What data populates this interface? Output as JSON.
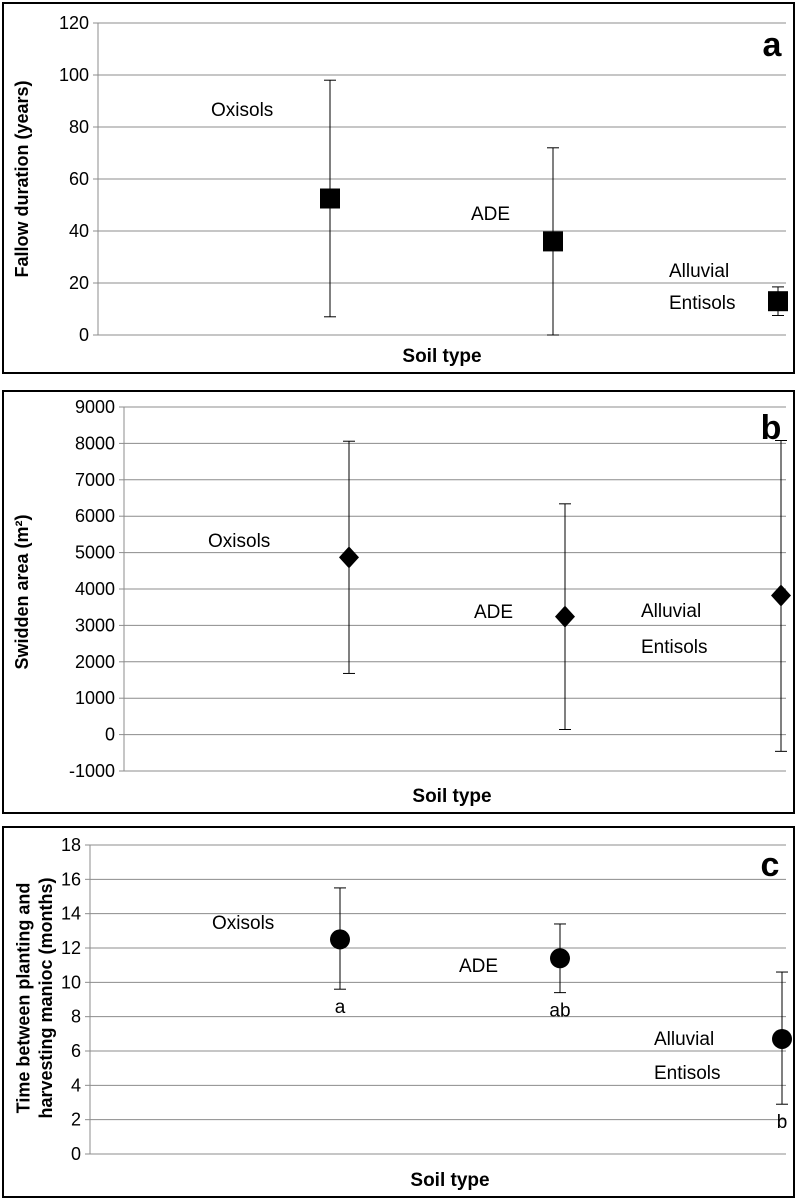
{
  "chart_data": [
    {
      "type": "scatter",
      "panel_letter": "a",
      "marker": "square",
      "ylabel": "Fallow duration (years)",
      "xlabel": "Soil type",
      "ylim": [
        0,
        120
      ],
      "yticks": [
        0,
        20,
        40,
        60,
        80,
        100,
        120
      ],
      "grid": true,
      "points": [
        {
          "label": "Oxisols",
          "y": 52.5,
          "err_low": 7,
          "err_high": 98,
          "letter": ""
        },
        {
          "label": "ADE",
          "y": 36,
          "err_low": 0,
          "err_high": 72,
          "letter": ""
        },
        {
          "label": "Alluvial Entisols",
          "y": 13,
          "err_low": 7.5,
          "err_high": 18.5,
          "letter": ""
        }
      ]
    },
    {
      "type": "scatter",
      "panel_letter": "b",
      "marker": "diamond",
      "ylabel": "Swidden area (m²)",
      "xlabel": "Soil type",
      "ylim": [
        -1000,
        9000
      ],
      "yticks": [
        -1000,
        0,
        1000,
        2000,
        3000,
        4000,
        5000,
        6000,
        7000,
        8000,
        9000
      ],
      "grid": true,
      "points": [
        {
          "label": "Oxisols",
          "y": 4870,
          "err_low": 1680,
          "err_high": 8060,
          "letter": ""
        },
        {
          "label": "ADE",
          "y": 3240,
          "err_low": 140,
          "err_high": 6340,
          "letter": ""
        },
        {
          "label": "Alluvial Entisols",
          "y": 3820,
          "err_low": -460,
          "err_high": 8080,
          "letter": ""
        }
      ]
    },
    {
      "type": "scatter",
      "panel_letter": "c",
      "marker": "circle",
      "ylabel": "Time between planting and harvesting manioc (months)",
      "xlabel": "Soil type",
      "ylim": [
        0,
        18
      ],
      "yticks": [
        0,
        2,
        4,
        6,
        8,
        10,
        12,
        14,
        16,
        18
      ],
      "grid": true,
      "points": [
        {
          "label": "Oxisols",
          "y": 12.5,
          "err_low": 9.6,
          "err_high": 15.5,
          "letter": "a"
        },
        {
          "label": "ADE",
          "y": 11.4,
          "err_low": 9.4,
          "err_high": 13.4,
          "letter": "ab"
        },
        {
          "label": "Alluvial Entisols",
          "y": 6.7,
          "err_low": 2.9,
          "err_high": 10.6,
          "letter": "b"
        }
      ]
    }
  ]
}
